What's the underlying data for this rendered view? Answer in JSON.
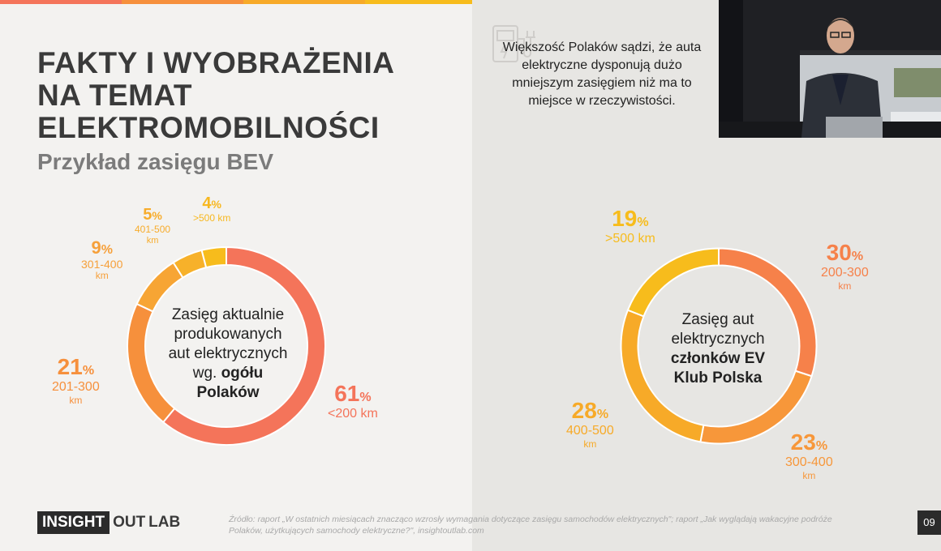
{
  "slide": {
    "title_lines": [
      "FAKTY I WYOBRAŻENIA",
      "NA TEMAT",
      "ELEKTROMOBILNOŚCI"
    ],
    "subtitle": "Przykład zasięgu BEV",
    "note": "Większość Polaków sądzi, że auta elektryczne dysponują dużo mniejszym zasięgiem niż ma to miejsce w rzeczywistości.",
    "logo": {
      "part1": "INSIGHT",
      "part2": "OUT",
      "part3": "LAB"
    },
    "source": "Źródło: raport „W ostatnich miesiącach znacząco wzrosły wymagania dotyczące zasięgu samochodów elektrycznych\"; raport „Jak wyglądają wakacyjne podróże Polaków, użytkujących samochody elektryczne?\", insightoutlab.com",
    "page_number": "09",
    "colors": {
      "coral": "#f4745a",
      "orange": "#f6903c",
      "amber": "#f7aa28",
      "yellow": "#f7bc1c",
      "dark": "#3a3a3a"
    },
    "icons": [
      "charging-station-icon"
    ]
  },
  "chart_data": [
    {
      "type": "pie",
      "donut": true,
      "center_text": {
        "line1": "Zasięg aktualnie",
        "line2": "produkowanych",
        "line3": "aut elektrycznych",
        "line4_prefix": "wg. ",
        "line4_bold": "ogółu",
        "line5_bold": "Polaków"
      },
      "slices": [
        {
          "value": 61,
          "pct": "61",
          "range": "<200 km",
          "unit": "",
          "color": "#f4745a"
        },
        {
          "value": 21,
          "pct": "21",
          "range": "201-300",
          "unit": "km",
          "color": "#f6903c"
        },
        {
          "value": 9,
          "pct": "9",
          "range": "301-400",
          "unit": "km",
          "color": "#f7a534"
        },
        {
          "value": 5,
          "pct": "5",
          "range": "401-500",
          "unit": "km",
          "color": "#f7b12a"
        },
        {
          "value": 4,
          "pct": "4",
          "range": ">500 km",
          "unit": "",
          "color": "#f7bc1c"
        }
      ]
    },
    {
      "type": "pie",
      "donut": true,
      "center_text": {
        "line1": "Zasięg aut",
        "line2": "elektrycznych",
        "line3_bold": "członków EV",
        "line4_bold": "Klub Polska"
      },
      "slices": [
        {
          "value": 30,
          "pct": "30",
          "range": "200-300",
          "unit": "km",
          "color": "#f6814a"
        },
        {
          "value": 23,
          "pct": "23",
          "range": "300-400",
          "unit": "km",
          "color": "#f7973a"
        },
        {
          "value": 28,
          "pct": "28",
          "range": "400-500",
          "unit": "km",
          "color": "#f7aa28"
        },
        {
          "value": 19,
          "pct": "19",
          "range": ">500 km",
          "unit": "",
          "color": "#f7bc1c"
        }
      ]
    }
  ]
}
